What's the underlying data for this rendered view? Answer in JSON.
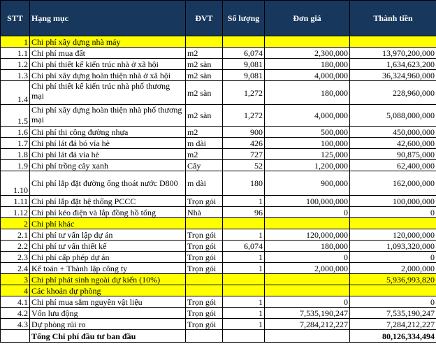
{
  "header": {
    "stt": "STT",
    "item": "Hạng mục",
    "unit": "ĐVT",
    "qty": "Số lượng",
    "price": "Đơn giá",
    "total": "Thành tiền"
  },
  "rows": [
    {
      "stt": "1",
      "item": "Chi phí xây dựng nhà máy",
      "unit": "",
      "qty": "",
      "price": "",
      "total": "",
      "type": "sec"
    },
    {
      "stt": "1.1",
      "item": "Chi phí mua đất",
      "unit": "m2",
      "qty": "6,074",
      "price": "2,300,000",
      "total": "13,970,200,000"
    },
    {
      "stt": "1.2",
      "item": "Chi phí thiết kế kiến trúc nhà ở xã hội",
      "unit": "m2 sàn",
      "qty": "9,081",
      "price": "180,000",
      "total": "1,634,623,200"
    },
    {
      "stt": "1.3",
      "item": "Chi phí xây dựng hoàn thiện nhà ở xã hội",
      "unit": "m2 sàn",
      "qty": "9,081",
      "price": "4,000,000",
      "total": "36,324,960,000"
    },
    {
      "stt": "1.4",
      "item": "Chi phí thiết kế kiến trúc nhà phố thương mại",
      "unit": "m2 sàn",
      "qty": "1,272",
      "price": "180,000",
      "total": "228,960,000",
      "tall": true
    },
    {
      "stt": "1.5",
      "item": "Chi phí xây dựng hoàn thiện nhà phố thương mại",
      "unit": "m2 sàn",
      "qty": "1,272",
      "price": "4,000,000",
      "total": "5,088,000,000",
      "tall": true
    },
    {
      "stt": "1.6",
      "item": "Chi phí thi công đường nhựa",
      "unit": "m2",
      "qty": "900",
      "price": "500,000",
      "total": "450,000,000"
    },
    {
      "stt": "1.7",
      "item": "Chi phí lát đá bó vỉa hè",
      "unit": "m dài",
      "qty": "426",
      "price": "100,000",
      "total": "42,600,000"
    },
    {
      "stt": "1.8",
      "item": "Chi phí lát đá vỉa hè",
      "unit": "m2",
      "qty": "727",
      "price": "125,000",
      "total": "90,875,000"
    },
    {
      "stt": "1.9",
      "item": "Chi phí trồng cây xanh",
      "unit": "Cây",
      "qty": "52",
      "price": "1,200,000",
      "total": "62,400,000"
    },
    {
      "stt": "1.10",
      "item": "Chi phí lắp đặt đường ống thoát nước D800",
      "unit": "m dài",
      "qty": "180",
      "price": "900,000",
      "total": "162,000,000",
      "tall": true,
      "center": true
    },
    {
      "stt": "1.11",
      "item": "Chi phí lắp đặt hệ thống PCCC",
      "unit": "Trọn gói",
      "qty": "1",
      "price": "100,000,000",
      "total": "100,000,000"
    },
    {
      "stt": "1.12",
      "item": "Chi phí kéo điện và lắp đồng hồ tổng",
      "unit": "Nhà",
      "qty": "96",
      "price": "0",
      "total": "0"
    },
    {
      "stt": "2",
      "item": "Chi phí khác",
      "unit": "",
      "qty": "",
      "price": "",
      "total": "",
      "type": "sec"
    },
    {
      "stt": "2.1",
      "item": "Chi phí tư vấn lập dự án",
      "unit": "Trọn gói",
      "qty": "1",
      "price": "120,000,000",
      "total": "120,000,000"
    },
    {
      "stt": "2.2",
      "item": "Chi phí tư vấn thiết kế",
      "unit": "Trọn gói",
      "qty": "6,074",
      "price": "180,000",
      "total": "1,093,320,000"
    },
    {
      "stt": "2.3",
      "item": "Chi phí cấp phép dự án",
      "unit": "Trọn gói",
      "qty": "1",
      "price": "0",
      "total": "0"
    },
    {
      "stt": "2.4",
      "item": "Kế toán + Thành lập công ty",
      "unit": "Trọn gói",
      "qty": "1",
      "price": "2,000,000",
      "total": "2,000,000"
    },
    {
      "stt": "3",
      "item": "Chi phí phát sinh ngoài dự kiến (10%)",
      "unit": "",
      "qty": "",
      "price": "",
      "total": "5,936,993,820",
      "type": "sec"
    },
    {
      "stt": "4",
      "item": "Các khoản dự phòng",
      "unit": "",
      "qty": "",
      "price": "",
      "total": "",
      "type": "sec"
    },
    {
      "stt": "4.1",
      "item": "Chi phí mua sắm nguyên vật liệu",
      "unit": "Trọn gói",
      "qty": "1",
      "price": "0",
      "total": "0"
    },
    {
      "stt": "4.2",
      "item": "Vốn lưu động",
      "unit": "Trọn gói",
      "qty": "1",
      "price": "7,535,190,247",
      "total": "7,535,190,247"
    },
    {
      "stt": "4.3",
      "item": "Dự phòng rủi ro",
      "unit": "Trọn gói",
      "qty": "1",
      "price": "7,284,212,227",
      "total": "7,284,212,227"
    },
    {
      "stt": "",
      "item": "Tổng Chi phí đầu tư ban đầu",
      "unit": "",
      "qty": "",
      "price": "",
      "total": "80,126,334,494",
      "type": "total"
    }
  ]
}
